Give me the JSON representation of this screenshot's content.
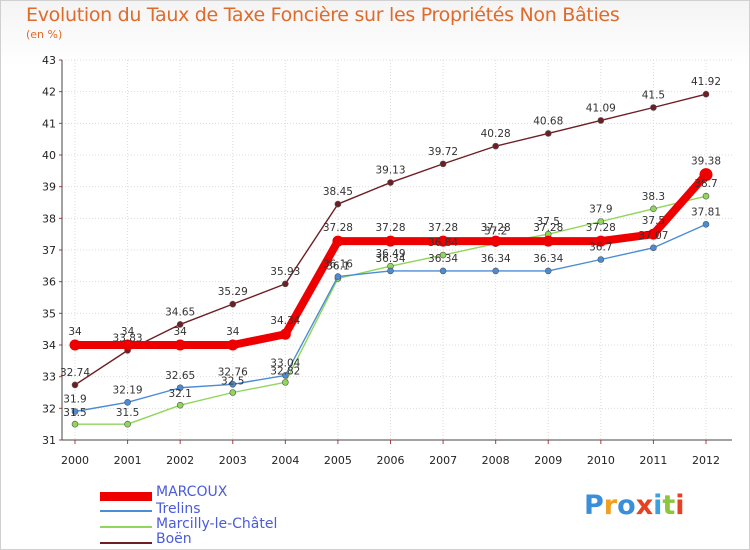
{
  "chart_data": {
    "type": "line",
    "title": "Evolution du Taux de Taxe Foncière sur les Propriétés Non Bâties",
    "unit_label": "(en %)",
    "xlabel": "",
    "ylabel": "(en %)",
    "ylim": [
      31,
      43
    ],
    "yticks": [
      "31",
      "32",
      "33",
      "34",
      "35",
      "36",
      "37",
      "38",
      "39",
      "40",
      "41",
      "42",
      "43"
    ],
    "categories": [
      "2000",
      "2001",
      "2002",
      "2003",
      "2004",
      "2005",
      "2006",
      "2007",
      "2008",
      "2009",
      "2010",
      "2011",
      "2012"
    ],
    "grid": true,
    "legend_position": "bottom-left",
    "series": [
      {
        "name": "MARCOUX",
        "color": "#ee0000",
        "values": [
          34,
          34,
          34,
          34,
          34.34,
          37.28,
          37.28,
          37.28,
          37.28,
          37.28,
          37.28,
          37.5,
          39.38
        ],
        "labels": [
          "34",
          "34",
          "34",
          "34",
          "34.34",
          "37.28",
          "37.28",
          "37.28",
          "37.28",
          "37.28",
          "37.28",
          "37.5",
          "39.38"
        ]
      },
      {
        "name": "Trelins",
        "color": "#4a8cd6",
        "values": [
          31.9,
          32.19,
          32.65,
          32.76,
          33.04,
          36.16,
          36.34,
          36.34,
          36.34,
          36.34,
          36.7,
          37.07,
          37.81
        ],
        "labels": [
          "31.9",
          "32.19",
          "32.65",
          "32.76",
          "33.04",
          "36.16",
          "36.34",
          "36.34",
          "36.34",
          "36.34",
          "36.7",
          "37.07",
          "37.81"
        ]
      },
      {
        "name": "Marcilly-le-Châtel",
        "color": "#8fd65a",
        "values": [
          31.5,
          31.5,
          32.1,
          32.5,
          32.82,
          36.1,
          36.49,
          36.84,
          37.2,
          37.5,
          37.9,
          38.3,
          38.7
        ],
        "labels": [
          "31.5",
          "31.5",
          "32.1",
          "32.5",
          "32.82",
          "36.1",
          "36.49",
          "36.84",
          "37.2",
          "37.5",
          "37.9",
          "38.3",
          "38.7"
        ]
      },
      {
        "name": "Boën",
        "color": "#6e1e24",
        "values": [
          32.74,
          33.83,
          34.65,
          35.29,
          35.93,
          38.45,
          39.13,
          39.72,
          40.28,
          40.68,
          41.09,
          41.5,
          41.92
        ],
        "labels": [
          "32.74",
          "33.83",
          "34.65",
          "35.29",
          "35.93",
          "38.45",
          "39.13",
          "39.72",
          "40.28",
          "40.68",
          "41.09",
          "41.5",
          "41.92"
        ]
      }
    ]
  },
  "logo": {
    "text": "Proxiti",
    "letters": [
      "P",
      "r",
      "o",
      "x",
      "i",
      "t",
      "i"
    ],
    "colors": [
      "#3a8fd8",
      "#f0a020",
      "#3a8fd8",
      "#e84020",
      "#3aa0e0",
      "#8cc63f",
      "#e84020"
    ]
  }
}
